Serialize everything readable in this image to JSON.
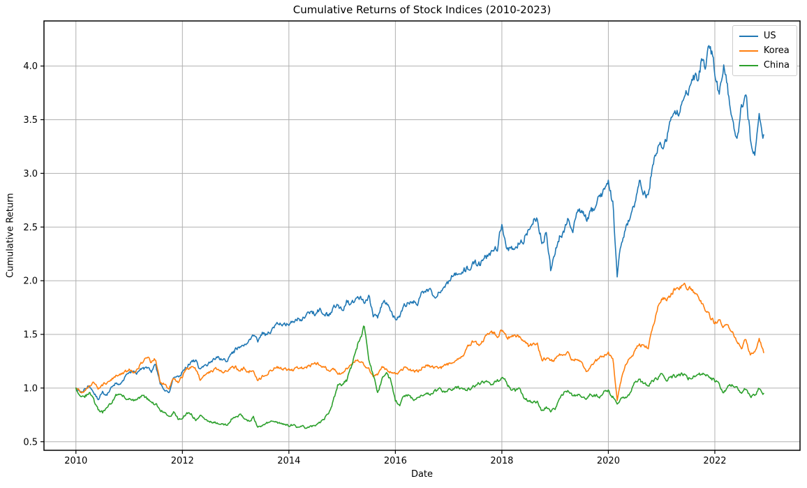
{
  "figure": {
    "background": "#ffffff",
    "grid_color": "#b0b0b0",
    "spine_color": "#000000",
    "text_color": "#000000"
  },
  "chart_data": {
    "type": "line",
    "title": "Cumulative Returns of Stock Indices (2010-2023)",
    "xlabel": "Date",
    "ylabel": "Cumulative Return",
    "grid": true,
    "legend_position": "upper right",
    "xlim": [
      2009.4,
      2023.6
    ],
    "ylim": [
      0.42,
      4.42
    ],
    "xticks": [
      2010,
      2012,
      2014,
      2016,
      2018,
      2020,
      2022
    ],
    "yticks": [
      0.5,
      1.0,
      1.5,
      2.0,
      2.5,
      3.0,
      3.5,
      4.0
    ],
    "x_start": 2010.0,
    "x_step_years": 0.0833333,
    "sampling": "monthly",
    "series": [
      {
        "name": "US",
        "color": "#1f77b4",
        "jitter": 0.012,
        "values": [
          1.0,
          0.96,
          0.99,
          1.03,
          0.96,
          0.9,
          0.96,
          0.93,
          1.0,
          1.05,
          1.04,
          1.1,
          1.13,
          1.16,
          1.14,
          1.19,
          1.18,
          1.16,
          1.21,
          1.03,
          0.99,
          0.97,
          1.09,
          1.1,
          1.15,
          1.2,
          1.25,
          1.25,
          1.17,
          1.21,
          1.23,
          1.26,
          1.29,
          1.26,
          1.25,
          1.31,
          1.36,
          1.38,
          1.42,
          1.45,
          1.48,
          1.44,
          1.51,
          1.49,
          1.54,
          1.57,
          1.61,
          1.61,
          1.58,
          1.64,
          1.64,
          1.65,
          1.68,
          1.71,
          1.69,
          1.74,
          1.71,
          1.66,
          1.76,
          1.77,
          1.72,
          1.81,
          1.78,
          1.81,
          1.84,
          1.81,
          1.85,
          1.68,
          1.67,
          1.78,
          1.8,
          1.73,
          1.65,
          1.66,
          1.78,
          1.79,
          1.81,
          1.77,
          1.89,
          1.93,
          1.9,
          1.86,
          1.9,
          1.95,
          1.98,
          2.05,
          2.06,
          2.08,
          2.11,
          2.13,
          2.16,
          2.15,
          2.2,
          2.25,
          2.29,
          2.32,
          2.52,
          2.32,
          2.29,
          2.31,
          2.37,
          2.39,
          2.48,
          2.56,
          2.58,
          2.38,
          2.43,
          2.1,
          2.28,
          2.4,
          2.45,
          2.57,
          2.45,
          2.62,
          2.64,
          2.58,
          2.63,
          2.69,
          2.77,
          2.85,
          2.9,
          2.72,
          2.05,
          2.38,
          2.5,
          2.57,
          2.72,
          2.93,
          2.82,
          2.79,
          3.1,
          3.24,
          3.26,
          3.32,
          3.46,
          3.54,
          3.55,
          3.66,
          3.76,
          3.92,
          3.86,
          4.05,
          4.02,
          4.22,
          3.95,
          3.72,
          4.05,
          3.77,
          3.52,
          3.28,
          3.62,
          3.76,
          3.35,
          3.18,
          3.5,
          3.36
        ]
      },
      {
        "name": "Korea",
        "color": "#ff7f0e",
        "jitter": 0.011,
        "values": [
          1.0,
          0.96,
          0.98,
          1.02,
          1.05,
          1.0,
          1.03,
          1.05,
          1.08,
          1.11,
          1.13,
          1.15,
          1.17,
          1.14,
          1.19,
          1.25,
          1.28,
          1.24,
          1.27,
          1.06,
          1.04,
          0.99,
          1.09,
          1.06,
          1.11,
          1.18,
          1.2,
          1.17,
          1.08,
          1.11,
          1.14,
          1.16,
          1.18,
          1.15,
          1.16,
          1.19,
          1.19,
          1.17,
          1.18,
          1.15,
          1.18,
          1.07,
          1.11,
          1.13,
          1.17,
          1.2,
          1.19,
          1.18,
          1.17,
          1.16,
          1.18,
          1.19,
          1.2,
          1.21,
          1.23,
          1.22,
          1.2,
          1.16,
          1.18,
          1.14,
          1.13,
          1.18,
          1.21,
          1.26,
          1.25,
          1.22,
          1.18,
          1.11,
          1.13,
          1.19,
          1.17,
          1.15,
          1.13,
          1.15,
          1.18,
          1.17,
          1.16,
          1.16,
          1.19,
          1.21,
          1.2,
          1.19,
          1.18,
          1.2,
          1.22,
          1.23,
          1.26,
          1.29,
          1.35,
          1.42,
          1.44,
          1.41,
          1.45,
          1.49,
          1.52,
          1.49,
          1.54,
          1.48,
          1.47,
          1.48,
          1.49,
          1.45,
          1.39,
          1.4,
          1.42,
          1.26,
          1.28,
          1.24,
          1.27,
          1.3,
          1.31,
          1.33,
          1.25,
          1.28,
          1.23,
          1.15,
          1.21,
          1.25,
          1.28,
          1.31,
          1.32,
          1.28,
          0.88,
          1.1,
          1.22,
          1.28,
          1.35,
          1.41,
          1.39,
          1.38,
          1.56,
          1.74,
          1.85,
          1.81,
          1.86,
          1.92,
          1.94,
          1.95,
          1.93,
          1.92,
          1.85,
          1.79,
          1.73,
          1.66,
          1.61,
          1.63,
          1.57,
          1.58,
          1.51,
          1.43,
          1.36,
          1.46,
          1.31,
          1.34,
          1.45,
          1.33
        ]
      },
      {
        "name": "China",
        "color": "#2ca02c",
        "jitter": 0.014,
        "values": [
          1.0,
          0.94,
          0.92,
          0.96,
          0.88,
          0.8,
          0.77,
          0.83,
          0.86,
          0.94,
          0.96,
          0.91,
          0.9,
          0.88,
          0.91,
          0.93,
          0.9,
          0.86,
          0.85,
          0.8,
          0.77,
          0.72,
          0.78,
          0.71,
          0.72,
          0.77,
          0.75,
          0.71,
          0.74,
          0.71,
          0.69,
          0.68,
          0.67,
          0.67,
          0.65,
          0.71,
          0.73,
          0.75,
          0.71,
          0.69,
          0.73,
          0.63,
          0.65,
          0.67,
          0.68,
          0.69,
          0.67,
          0.66,
          0.65,
          0.66,
          0.63,
          0.64,
          0.63,
          0.64,
          0.66,
          0.68,
          0.72,
          0.77,
          0.88,
          1.02,
          1.03,
          1.07,
          1.18,
          1.35,
          1.46,
          1.58,
          1.28,
          1.12,
          0.96,
          1.08,
          1.13,
          1.06,
          0.88,
          0.84,
          0.93,
          0.94,
          0.89,
          0.9,
          0.93,
          0.95,
          0.94,
          0.97,
          0.99,
          0.96,
          0.98,
          1.0,
          1.01,
          0.99,
          0.97,
          1.0,
          1.02,
          1.04,
          1.05,
          1.06,
          1.04,
          1.06,
          1.1,
          1.05,
          0.99,
          0.97,
          0.99,
          0.92,
          0.88,
          0.86,
          0.87,
          0.79,
          0.82,
          0.79,
          0.81,
          0.9,
          0.96,
          0.98,
          0.92,
          0.94,
          0.93,
          0.91,
          0.94,
          0.93,
          0.92,
          0.96,
          0.97,
          0.92,
          0.85,
          0.9,
          0.91,
          0.95,
          1.06,
          1.08,
          1.03,
          1.03,
          1.06,
          1.09,
          1.13,
          1.08,
          1.1,
          1.11,
          1.12,
          1.13,
          1.08,
          1.12,
          1.13,
          1.12,
          1.12,
          1.1,
          1.07,
          1.04,
          0.95,
          1.0,
          1.03,
          1.02,
          0.95,
          1.0,
          0.92,
          0.93,
          1.0,
          0.95
        ]
      }
    ]
  }
}
